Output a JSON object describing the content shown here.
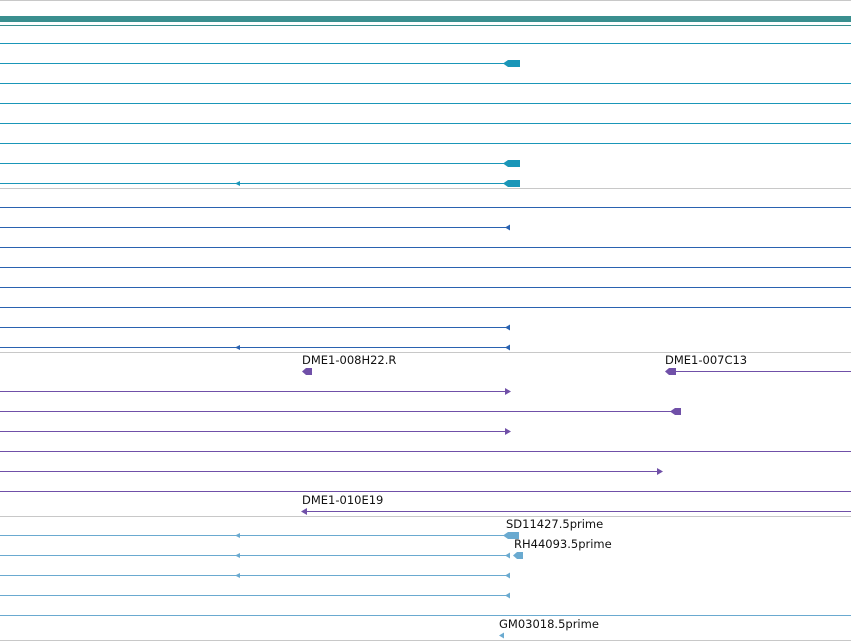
{
  "colors": {
    "background": "#ffffff",
    "divider": "#c8c8c8",
    "group_teal": "#3a8f8f",
    "group_cyan": "#1a96b8",
    "group_blue": "#2a62b0",
    "group_purple": "#7050a8",
    "group_lightblue": "#6aaad0",
    "label_text": "#111111"
  },
  "feature_labels": {
    "dme1_008h22_r": "DME1-008H22.R",
    "dme1_007c13": "DME1-007C13",
    "dme1_010e19": "DME1-010E19",
    "sd11427_5prime": "SD11427.5prime",
    "rh44093_5prime": "RH44093.5prime",
    "gm03018_5prime": "GM03018.5prime"
  },
  "track_groups": [
    {
      "name": "teal-group",
      "color_key": "group_teal"
    },
    {
      "name": "cyan-group",
      "color_key": "group_cyan"
    },
    {
      "name": "blue-group",
      "color_key": "group_blue"
    },
    {
      "name": "purple-group",
      "color_key": "group_purple"
    },
    {
      "name": "lightblue-group",
      "color_key": "group_lightblue"
    }
  ]
}
